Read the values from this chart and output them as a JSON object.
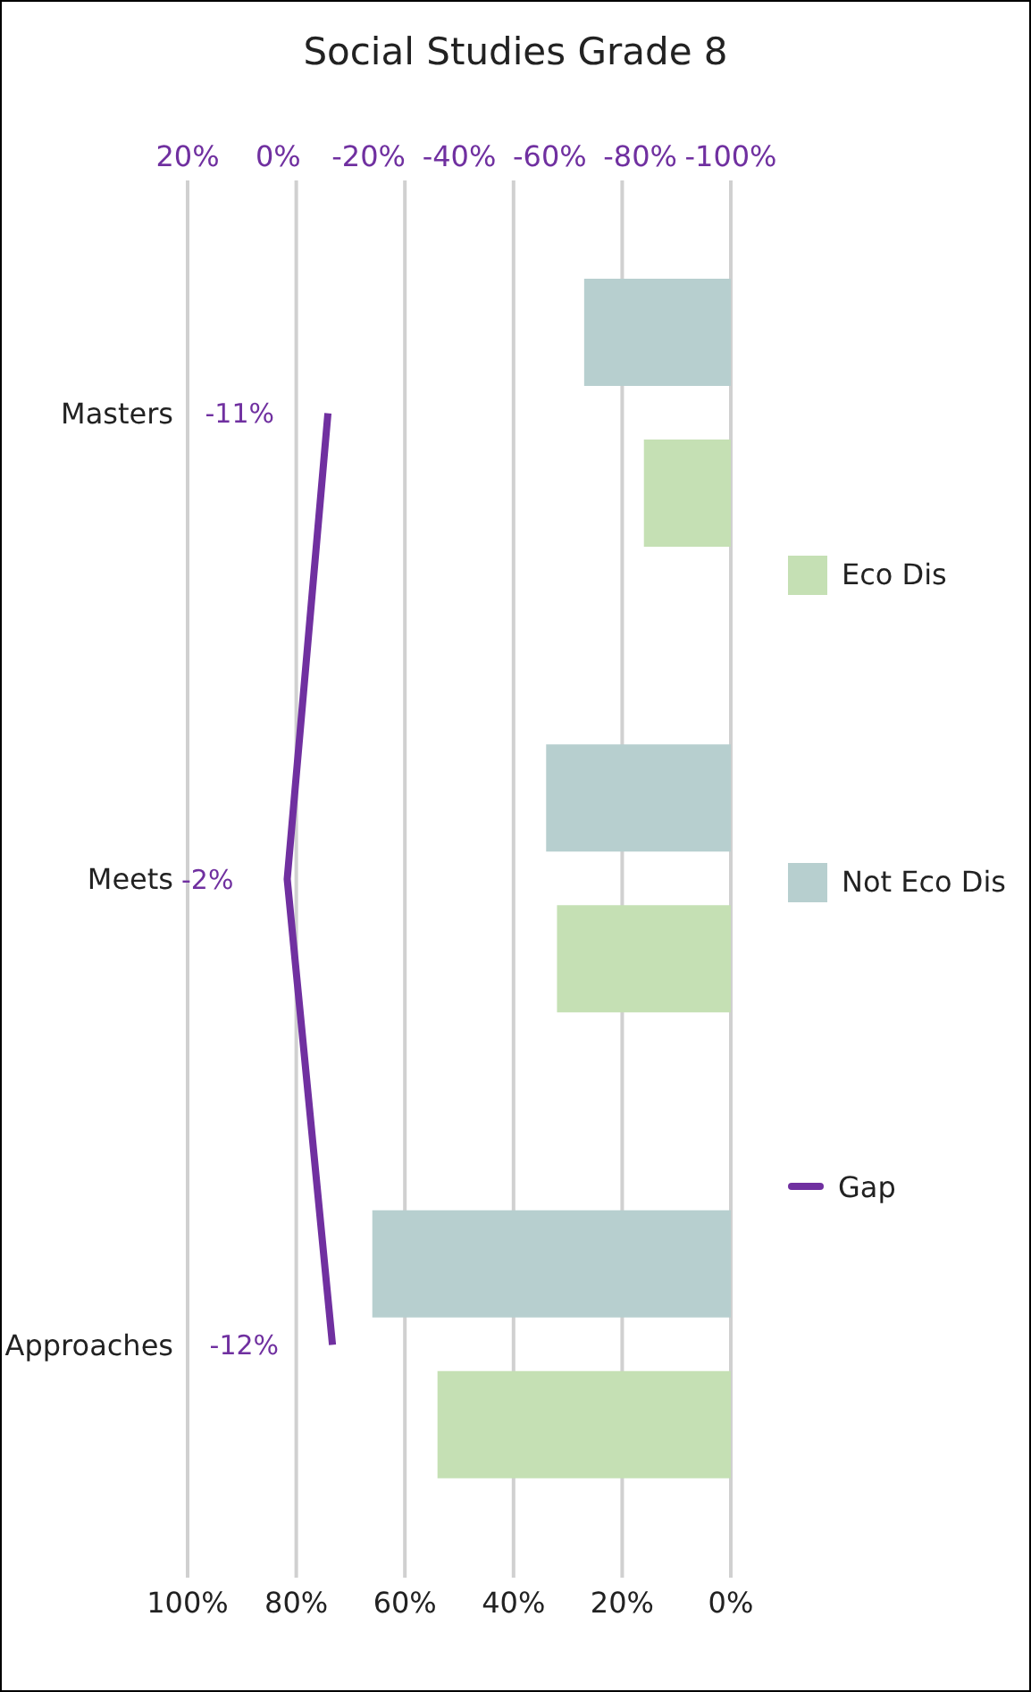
{
  "chart_data": {
    "type": "bar",
    "orientation": "horizontal",
    "title": "Social Studies Grade 8",
    "categories": [
      "Masters",
      "Meets",
      "Approaches"
    ],
    "series": [
      {
        "name": "Eco Dis",
        "color": "#c5e0b4",
        "values": [
          16,
          32,
          54
        ]
      },
      {
        "name": "Not Eco Dis",
        "color": "#b7cfcf",
        "values": [
          27,
          34,
          66
        ]
      },
      {
        "name": "Gap",
        "type": "line",
        "axis": "x2",
        "color": "#7030a0",
        "values": [
          -11,
          -2,
          -12
        ],
        "value_labels": [
          "-11%",
          "-2%",
          "-12%"
        ]
      }
    ],
    "xlim": [
      100,
      0
    ],
    "xticks": [
      {
        "value": 100,
        "label": "100%"
      },
      {
        "value": 80,
        "label": "80%"
      },
      {
        "value": 60,
        "label": "60%"
      },
      {
        "value": 40,
        "label": "40%"
      },
      {
        "value": 20,
        "label": "20%"
      },
      {
        "value": 0,
        "label": "0%"
      }
    ],
    "x2lim": [
      20,
      -100
    ],
    "x2ticks": [
      {
        "value": 20,
        "label": "20%"
      },
      {
        "value": 0,
        "label": "0%"
      },
      {
        "value": -20,
        "label": "-20%"
      },
      {
        "value": -40,
        "label": "-40%"
      },
      {
        "value": -60,
        "label": "-60%"
      },
      {
        "value": -80,
        "label": "-80%"
      },
      {
        "value": -100,
        "label": "-100%"
      }
    ],
    "grid": "x",
    "legend": "right",
    "marker": "none"
  }
}
